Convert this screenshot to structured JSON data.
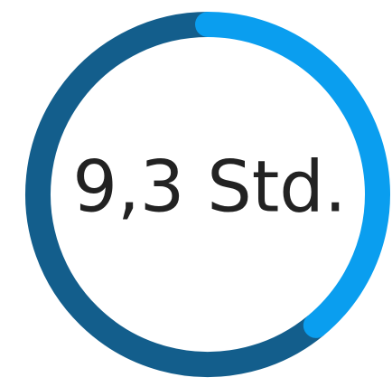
{
  "chart_data": {
    "type": "donut",
    "center_label": "9,3 Std.",
    "values": [
      39,
      61
    ],
    "colors": [
      "#0a9eef",
      "#135e8c"
    ]
  }
}
